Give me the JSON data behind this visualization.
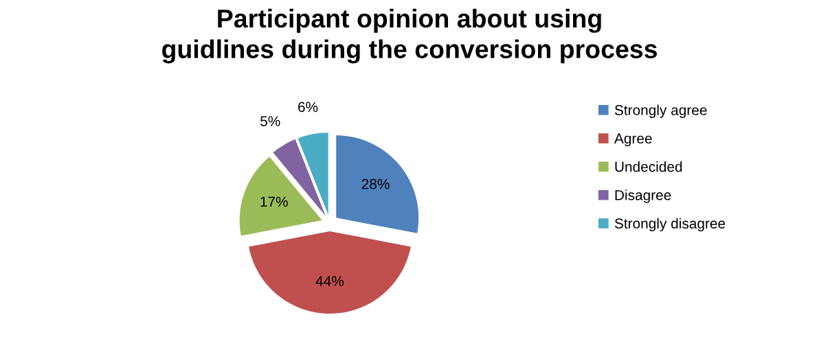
{
  "chart_data": {
    "type": "pie",
    "title": "Participant opinion about using\nguidlines during the conversion process",
    "categories": [
      "Strongly agree",
      "Agree",
      "Undecided",
      "Disagree",
      "Strongly disagree"
    ],
    "values": [
      28,
      44,
      17,
      5,
      6
    ],
    "colors": [
      "#4f81bd",
      "#c0504d",
      "#9bbb59",
      "#8064a2",
      "#4bacc6"
    ],
    "value_labels": [
      "28%",
      "44%",
      "17%",
      "5%",
      "6%"
    ],
    "legend": "right"
  }
}
